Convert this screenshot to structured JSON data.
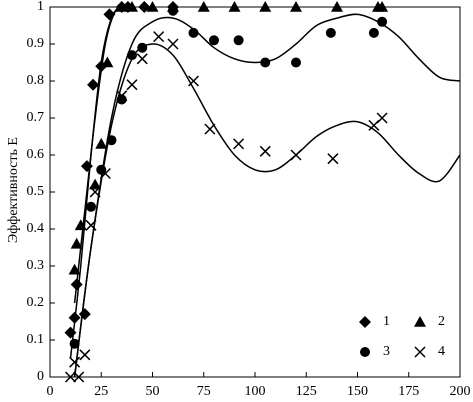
{
  "chart_data": {
    "type": "scatter",
    "ylabel": "Эффективность E",
    "xlim": [
      0,
      200
    ],
    "ylim": [
      0,
      1
    ],
    "xticks": [
      0,
      25,
      50,
      75,
      100,
      125,
      150,
      175,
      200
    ],
    "yticks": [
      0,
      0.1,
      0.2,
      0.3,
      0.4,
      0.5,
      0.6,
      0.7,
      0.8,
      0.9,
      1
    ],
    "legend": "lower right",
    "series": [
      {
        "name": "1",
        "marker": "diamond",
        "color": "#000000",
        "x": [
          10,
          12,
          13,
          17,
          18,
          21,
          25,
          29,
          35,
          38,
          46,
          60
        ],
        "values": [
          0.12,
          0.16,
          0.25,
          0.17,
          0.57,
          0.79,
          0.84,
          0.98,
          1,
          1,
          1,
          1
        ]
      },
      {
        "name": "2",
        "marker": "triangle",
        "color": "#000000",
        "x": [
          12,
          13,
          15,
          22,
          25,
          28,
          35,
          40,
          50,
          60,
          75,
          90,
          105,
          120,
          140,
          160,
          162
        ],
        "values": [
          0.29,
          0.36,
          0.41,
          0.52,
          0.63,
          0.85,
          1,
          1,
          1,
          1,
          1,
          1,
          1,
          1,
          1,
          1,
          1
        ]
      },
      {
        "name": "3",
        "marker": "circle",
        "color": "#000000",
        "x": [
          12,
          20,
          25,
          30,
          35,
          40,
          45,
          60,
          70,
          80,
          92,
          105,
          120,
          137,
          158,
          162
        ],
        "values": [
          0.09,
          0.46,
          0.56,
          0.64,
          0.75,
          0.87,
          0.89,
          0.99,
          0.93,
          0.91,
          0.91,
          0.85,
          0.85,
          0.93,
          0.93,
          0.96
        ]
      },
      {
        "name": "4",
        "marker": "cross",
        "color": "#000000",
        "x": [
          10,
          12,
          14,
          17,
          20,
          22,
          27,
          35,
          40,
          45,
          53,
          60,
          70,
          78,
          92,
          105,
          120,
          138,
          158,
          162
        ],
        "values": [
          0,
          0.04,
          0,
          0.06,
          0.41,
          0.5,
          0.55,
          0.76,
          0.79,
          0.86,
          0.92,
          0.9,
          0.8,
          0.67,
          0.63,
          0.61,
          0.6,
          0.59,
          0.68,
          0.7
        ]
      }
    ],
    "fits": [
      {
        "color": "#000000",
        "x": [
          10,
          15,
          20,
          25,
          30,
          35,
          40
        ],
        "values": [
          0.05,
          0.3,
          0.6,
          0.85,
          0.97,
          1,
          1
        ]
      },
      {
        "color": "#000000",
        "x": [
          12,
          17,
          22,
          27,
          32,
          37
        ],
        "values": [
          0.2,
          0.45,
          0.7,
          0.9,
          0.99,
          1
        ]
      },
      {
        "color": "#000000",
        "x": [
          12,
          20,
          30,
          40,
          50,
          60,
          70,
          80,
          90,
          100,
          110,
          120,
          130,
          140,
          150,
          160,
          170,
          180,
          190,
          200
        ],
        "values": [
          0,
          0.35,
          0.7,
          0.9,
          0.96,
          0.97,
          0.94,
          0.89,
          0.86,
          0.85,
          0.86,
          0.9,
          0.95,
          0.97,
          0.98,
          0.96,
          0.92,
          0.86,
          0.81,
          0.8
        ]
      },
      {
        "color": "#000000",
        "x": [
          12,
          20,
          30,
          40,
          50,
          60,
          70,
          80,
          90,
          100,
          110,
          120,
          130,
          140,
          150,
          160,
          170,
          180,
          190,
          200
        ],
        "values": [
          0,
          0.35,
          0.68,
          0.86,
          0.9,
          0.87,
          0.78,
          0.68,
          0.6,
          0.56,
          0.56,
          0.6,
          0.65,
          0.68,
          0.69,
          0.66,
          0.6,
          0.55,
          0.53,
          0.6
        ]
      }
    ]
  }
}
